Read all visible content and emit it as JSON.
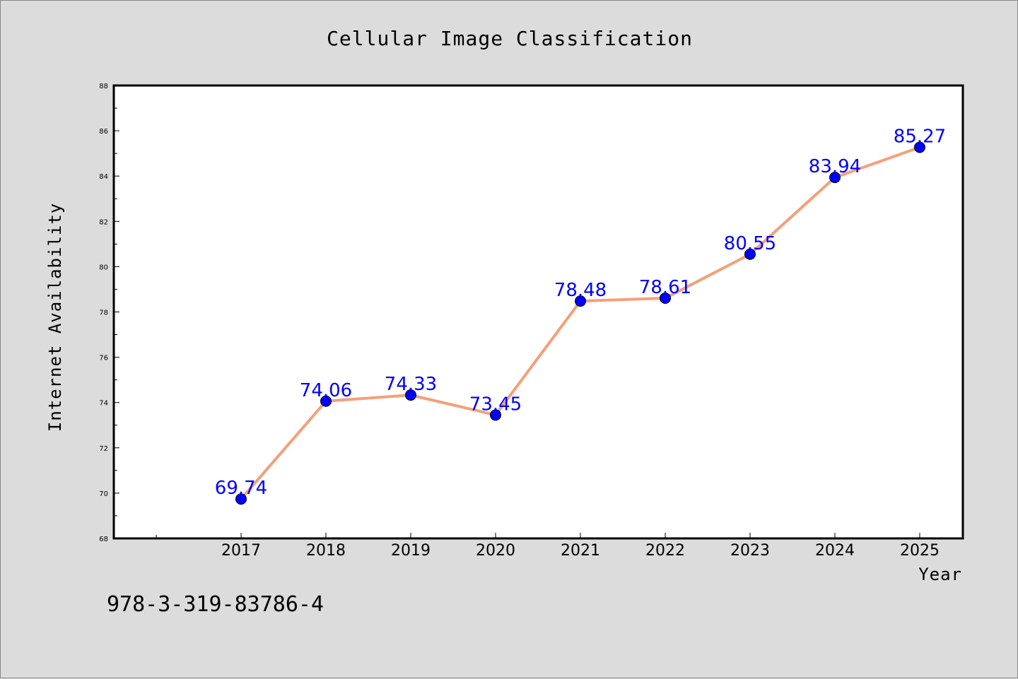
{
  "chart_data": {
    "type": "line",
    "title": "Cellular Image Classification",
    "xlabel": "Year",
    "ylabel": "Internet Availability",
    "categories": [
      "2017",
      "2018",
      "2019",
      "2020",
      "2021",
      "2022",
      "2023",
      "2024",
      "2025"
    ],
    "series": [
      {
        "values": [
          69.74,
          74.06,
          74.33,
          73.45,
          78.48,
          78.61,
          80.55,
          83.94,
          85.27
        ],
        "labels": [
          "69.74",
          "74.06",
          "74.33",
          "73.45",
          "78.48",
          "78.61",
          "80.55",
          "83.94",
          "85.27"
        ],
        "line_color": "#f4a07a",
        "marker_color": "#0000ff"
      }
    ],
    "ylim": [
      68,
      88
    ],
    "yticks": [
      "68",
      "70",
      "72",
      "74",
      "76",
      "78",
      "80",
      "82",
      "84",
      "86",
      "88"
    ],
    "grid": false,
    "legend": false
  },
  "footer_text": "978-3-319-83786-4"
}
